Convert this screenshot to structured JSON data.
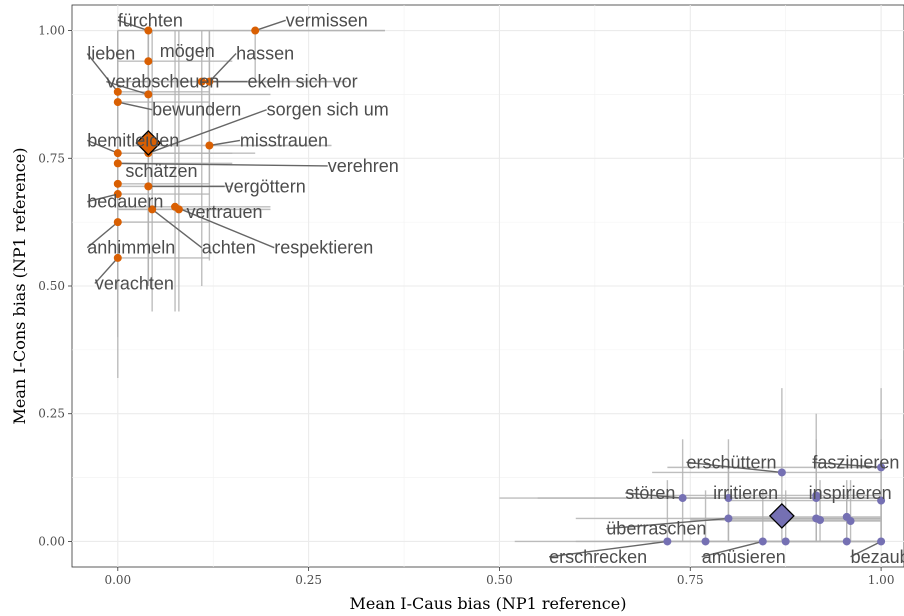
{
  "chart_data": {
    "type": "scatter",
    "xlabel": "Mean I-Caus bias (NP1 reference)",
    "ylabel": "Mean I-Cons bias (NP1 reference)",
    "xlim": [
      -0.06,
      1.03
    ],
    "ylim": [
      -0.05,
      1.05
    ],
    "x_ticks": [
      0.0,
      0.25,
      0.5,
      0.75,
      1.0
    ],
    "x_tick_labels": [
      "0.00",
      "0.25",
      "0.50",
      "0.75",
      "1.00"
    ],
    "y_ticks": [
      0.0,
      0.25,
      0.5,
      0.75,
      1.0
    ],
    "y_tick_labels": [
      "0.00",
      "0.25",
      "0.50",
      "0.75",
      "1.00"
    ],
    "grid": true,
    "series": [
      {
        "color": "#D95F02",
        "centroid": {
          "x": 0.04,
          "y": 0.78
        },
        "points": [
          {
            "label": "fürchten",
            "x": 0.04,
            "y": 1.0,
            "xerr": [
              0.0,
              0.35
            ],
            "yerr": [
              0.8,
              1.0
            ],
            "label_x": 0.0,
            "label_y": 1.02
          },
          {
            "label": "vermissen",
            "x": 0.18,
            "y": 1.0,
            "xerr": [
              0.04,
              0.35
            ],
            "yerr": [
              0.9,
              1.0
            ],
            "label_x": 0.22,
            "label_y": 1.02
          },
          {
            "label": "lieben",
            "x": 0.0,
            "y": 0.88,
            "xerr": [
              0.0,
              0.12
            ],
            "yerr": [
              0.55,
              1.0
            ],
            "label_x": -0.04,
            "label_y": 0.955
          },
          {
            "label": "mögen",
            "x": 0.04,
            "y": 0.94,
            "xerr": [
              0.0,
              0.15
            ],
            "yerr": [
              0.55,
              1.0
            ],
            "label_x": 0.055,
            "label_y": 0.96
          },
          {
            "label": "hassen",
            "x": 0.12,
            "y": 0.9,
            "xerr": [
              0.02,
              0.3
            ],
            "yerr": [
              0.7,
              1.0
            ],
            "label_x": 0.155,
            "label_y": 0.955
          },
          {
            "label": "verabscheuen",
            "x": 0.04,
            "y": 0.875,
            "xerr": [
              0.0,
              0.2
            ],
            "yerr": [
              0.5,
              1.0
            ],
            "label_x": -0.015,
            "label_y": 0.9
          },
          {
            "label": "ekeln sich vor",
            "x": 0.11,
            "y": 0.9,
            "xerr": [
              0.0,
              0.28
            ],
            "yerr": [
              0.5,
              1.0
            ],
            "label_x": 0.17,
            "label_y": 0.9
          },
          {
            "label": "bewundern",
            "x": 0.0,
            "y": 0.86,
            "xerr": [
              0.0,
              0.12
            ],
            "yerr": [
              0.5,
              1.0
            ],
            "label_x": 0.045,
            "label_y": 0.845
          },
          {
            "label": "sorgen sich um",
            "x": 0.04,
            "y": 0.76,
            "xerr": [
              0.0,
              0.18
            ],
            "yerr": [
              0.5,
              1.0
            ],
            "label_x": 0.195,
            "label_y": 0.845
          },
          {
            "label": "bemitleiden",
            "x": 0.0,
            "y": 0.76,
            "xerr": [
              0.0,
              0.15
            ],
            "yerr": [
              0.5,
              1.0
            ],
            "label_x": -0.04,
            "label_y": 0.785
          },
          {
            "label": "misstrauen",
            "x": 0.12,
            "y": 0.775,
            "xerr": [
              0.02,
              0.28
            ],
            "yerr": [
              0.55,
              1.0
            ],
            "label_x": 0.16,
            "label_y": 0.785
          },
          {
            "label": "verehren",
            "x": 0.0,
            "y": 0.74,
            "xerr": [
              0.0,
              0.15
            ],
            "yerr": [
              0.5,
              1.0
            ],
            "label_x": 0.275,
            "label_y": 0.735
          },
          {
            "label": "schätzen",
            "x": 0.0,
            "y": 0.7,
            "xerr": [
              0.0,
              0.12
            ],
            "yerr": [
              0.5,
              1.0
            ],
            "label_x": 0.01,
            "label_y": 0.725
          },
          {
            "label": "vergöttern",
            "x": 0.04,
            "y": 0.695,
            "xerr": [
              0.0,
              0.15
            ],
            "yerr": [
              0.5,
              1.0
            ],
            "label_x": 0.14,
            "label_y": 0.695
          },
          {
            "label": "bedauern",
            "x": 0.0,
            "y": 0.68,
            "xerr": [
              0.0,
              0.12
            ],
            "yerr": [
              0.45,
              1.0
            ],
            "label_x": -0.04,
            "label_y": 0.665
          },
          {
            "label": "vertrauen",
            "x": 0.08,
            "y": 0.65,
            "xerr": [
              0.0,
              0.2
            ],
            "yerr": [
              0.45,
              1.0
            ],
            "label_x": 0.09,
            "label_y": 0.645
          },
          {
            "label": "achten",
            "x": 0.045,
            "y": 0.65,
            "xerr": [
              0.0,
              0.15
            ],
            "yerr": [
              0.45,
              1.0
            ],
            "label_x": 0.11,
            "label_y": 0.575
          },
          {
            "label": "respektieren",
            "x": 0.075,
            "y": 0.655,
            "xerr": [
              0.0,
              0.2
            ],
            "yerr": [
              0.45,
              1.0
            ],
            "label_x": 0.205,
            "label_y": 0.575
          },
          {
            "label": "anhimmeln",
            "x": 0.0,
            "y": 0.625,
            "xerr": [
              0.0,
              0.12
            ],
            "yerr": [
              0.4,
              1.0
            ],
            "label_x": -0.04,
            "label_y": 0.575
          },
          {
            "label": "verachten",
            "x": 0.0,
            "y": 0.555,
            "xerr": [
              0.0,
              0.12
            ],
            "yerr": [
              0.32,
              1.0
            ],
            "label_x": -0.03,
            "label_y": 0.505
          }
        ]
      },
      {
        "color": "#7570B3",
        "centroid": {
          "x": 0.87,
          "y": 0.05
        },
        "points": [
          {
            "label": "erschüttern",
            "x": 0.87,
            "y": 0.135,
            "xerr": [
              0.7,
              1.0
            ],
            "yerr": [
              0.0,
              0.3
            ],
            "label_x": 0.745,
            "label_y": 0.155
          },
          {
            "label": "faszinieren",
            "x": 1.0,
            "y": 0.145,
            "xerr": [
              0.72,
              1.0
            ],
            "yerr": [
              0.0,
              0.3
            ],
            "label_x": 0.91,
            "label_y": 0.155
          },
          {
            "label": "stören",
            "x": 0.74,
            "y": 0.085,
            "xerr": [
              0.5,
              1.0
            ],
            "yerr": [
              0.0,
              0.2
            ],
            "label_x": 0.665,
            "label_y": 0.095
          },
          {
            "label": "irritieren",
            "x": 0.8,
            "y": 0.085,
            "xerr": [
              0.55,
              1.0
            ],
            "yerr": [
              0.0,
              0.2
            ],
            "label_x": 0.78,
            "label_y": 0.095
          },
          {
            "label": "inspirieren",
            "x": 0.915,
            "y": 0.085,
            "xerr": [
              0.7,
              1.0
            ],
            "yerr": [
              0.0,
              0.25
            ],
            "label_x": 0.905,
            "label_y": 0.095
          },
          {
            "label": "",
            "x": 0.915,
            "y": 0.09,
            "xerr": [
              0.7,
              1.0
            ],
            "yerr": [
              0.0,
              0.2
            ]
          },
          {
            "label": "",
            "x": 1.0,
            "y": 0.08,
            "xerr": [
              0.8,
              1.0
            ],
            "yerr": [
              0.0,
              0.2
            ]
          },
          {
            "label": "überraschen",
            "x": 0.8,
            "y": 0.045,
            "xerr": [
              0.6,
              1.0
            ],
            "yerr": [
              0.0,
              0.15
            ],
            "label_x": 0.64,
            "label_y": 0.025
          },
          {
            "label": "",
            "x": 0.915,
            "y": 0.045,
            "xerr": [
              0.75,
              1.0
            ],
            "yerr": [
              0.0,
              0.12
            ]
          },
          {
            "label": "",
            "x": 0.92,
            "y": 0.042,
            "xerr": [
              0.75,
              1.0
            ],
            "yerr": [
              0.0,
              0.12
            ]
          },
          {
            "label": "",
            "x": 0.955,
            "y": 0.048,
            "xerr": [
              0.8,
              1.0
            ],
            "yerr": [
              0.0,
              0.12
            ]
          },
          {
            "label": "",
            "x": 0.96,
            "y": 0.04,
            "xerr": [
              0.8,
              1.0
            ],
            "yerr": [
              0.0,
              0.12
            ]
          },
          {
            "label": "erschrecken",
            "x": 0.72,
            "y": 0.0,
            "xerr": [
              0.52,
              1.0
            ],
            "yerr": [
              0.0,
              0.12
            ],
            "label_x": 0.565,
            "label_y": -0.03
          },
          {
            "label": "",
            "x": 0.77,
            "y": 0.0,
            "xerr": [
              0.6,
              1.0
            ],
            "yerr": [
              0.0,
              0.1
            ]
          },
          {
            "label": "amüsieren",
            "x": 0.845,
            "y": 0.0,
            "xerr": [
              0.65,
              1.0
            ],
            "yerr": [
              0.0,
              0.1
            ],
            "label_x": 0.765,
            "label_y": -0.03
          },
          {
            "label": "",
            "x": 0.875,
            "y": 0.0,
            "xerr": [
              0.7,
              1.0
            ],
            "yerr": [
              0.0,
              0.1
            ]
          },
          {
            "label": "",
            "x": 0.955,
            "y": 0.0,
            "xerr": [
              0.8,
              1.0
            ],
            "yerr": [
              0.0,
              0.1
            ]
          },
          {
            "label": "bezaubern",
            "x": 1.0,
            "y": 0.0,
            "xerr": [
              0.8,
              1.0
            ],
            "yerr": [
              0.0,
              0.1
            ],
            "label_x": 0.96,
            "label_y": -0.03
          }
        ]
      }
    ]
  }
}
